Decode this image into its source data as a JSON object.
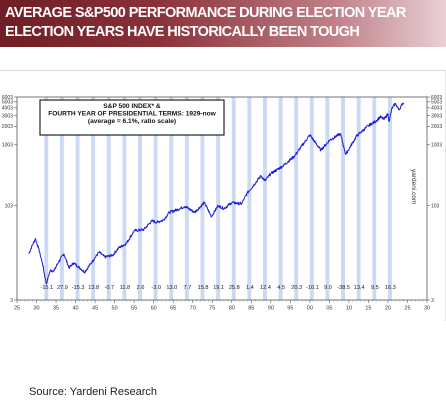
{
  "header": {
    "line1": "AVERAGE S&P500 PERFORMANCE DURING ELECTION YEAR",
    "line2": "ELECTION YEARS HAVE HISTORICALLY BEEN TOUGH"
  },
  "source": "Source: Yardeni Research",
  "chart_data": {
    "type": "line",
    "legend_lines": [
      "S&P 500 INDEX* &",
      "FOURTH YEAR OF PRESIDENTIAL TERMS: 1929-now",
      "(average = 6.1%, ratio scale)"
    ],
    "watermark": "yardeni.com",
    "y_scale": "log",
    "ylim": [
      3,
      6003
    ],
    "y_ticks": [
      3,
      103,
      1003,
      2003,
      3003,
      4003,
      5003,
      6003
    ],
    "xlim": [
      1925,
      2030
    ],
    "x_tick_labels": [
      "25",
      "30",
      "35",
      "40",
      "45",
      "50",
      "55",
      "60",
      "65",
      "70",
      "75",
      "80",
      "85",
      "90",
      "95",
      "00",
      "05",
      "10",
      "15",
      "20",
      "25",
      "30"
    ],
    "election_years": [
      {
        "year": 1932,
        "label": "-15.1"
      },
      {
        "year": 1936,
        "label": "27.9"
      },
      {
        "year": 1940,
        "label": "-15.3"
      },
      {
        "year": 1944,
        "label": "13.8"
      },
      {
        "year": 1948,
        "label": "-0.7"
      },
      {
        "year": 1952,
        "label": "11.8"
      },
      {
        "year": 1956,
        "label": "2.6"
      },
      {
        "year": 1960,
        "label": "-3.0"
      },
      {
        "year": 1964,
        "label": "13.0"
      },
      {
        "year": 1968,
        "label": "7.7"
      },
      {
        "year": 1972,
        "label": "15.8"
      },
      {
        "year": 1976,
        "label": "19.1"
      },
      {
        "year": 1980,
        "label": "25.8"
      },
      {
        "year": 1984,
        "label": "1.4"
      },
      {
        "year": 1988,
        "label": "12.4"
      },
      {
        "year": 1992,
        "label": "4.5"
      },
      {
        "year": 1996,
        "label": "20.3"
      },
      {
        "year": 2000,
        "label": "-10.1"
      },
      {
        "year": 2004,
        "label": "9.0"
      },
      {
        "year": 2008,
        "label": "-38.5"
      },
      {
        "year": 2012,
        "label": "13.4"
      },
      {
        "year": 2016,
        "label": "9.5"
      },
      {
        "year": 2020,
        "label": "16.3"
      }
    ],
    "series": [
      {
        "values": [
          [
            1928.0,
            17
          ],
          [
            1929.7,
            30
          ],
          [
            1930.5,
            21
          ],
          [
            1931.5,
            12
          ],
          [
            1932.5,
            5.5
          ],
          [
            1933.5,
            9
          ],
          [
            1934.5,
            9
          ],
          [
            1935.5,
            12
          ],
          [
            1937.0,
            17
          ],
          [
            1938.3,
            10
          ],
          [
            1939.5,
            12
          ],
          [
            1941.5,
            9.5
          ],
          [
            1942.3,
            8.5
          ],
          [
            1944.0,
            12
          ],
          [
            1946.0,
            18
          ],
          [
            1947.5,
            15
          ],
          [
            1949.5,
            16
          ],
          [
            1951.0,
            21
          ],
          [
            1953.0,
            25
          ],
          [
            1955.0,
            40
          ],
          [
            1957.5,
            42
          ],
          [
            1959.5,
            58
          ],
          [
            1960.8,
            55
          ],
          [
            1962.5,
            60
          ],
          [
            1964.0,
            80
          ],
          [
            1966.0,
            88
          ],
          [
            1968.0,
            100
          ],
          [
            1970.5,
            80
          ],
          [
            1973.0,
            115
          ],
          [
            1974.8,
            68
          ],
          [
            1976.5,
            103
          ],
          [
            1978.0,
            92
          ],
          [
            1980.0,
            115
          ],
          [
            1982.5,
            110
          ],
          [
            1984.0,
            165
          ],
          [
            1987.5,
            315
          ],
          [
            1988.5,
            260
          ],
          [
            1990.0,
            340
          ],
          [
            1993.0,
            450
          ],
          [
            1996.0,
            650
          ],
          [
            2000.0,
            1450
          ],
          [
            2002.8,
            820
          ],
          [
            2005.0,
            1180
          ],
          [
            2007.8,
            1520
          ],
          [
            2009.2,
            700
          ],
          [
            2012.0,
            1400
          ],
          [
            2015.0,
            2050
          ],
          [
            2017.0,
            2450
          ],
          [
            2018.0,
            2850
          ],
          [
            2019.0,
            2600
          ],
          [
            2020.0,
            3200
          ],
          [
            2020.3,
            2400
          ],
          [
            2021.0,
            3900
          ],
          [
            2021.9,
            4700
          ],
          [
            2022.8,
            3700
          ],
          [
            2023.5,
            4400
          ],
          [
            2024.0,
            4850
          ]
        ]
      }
    ]
  }
}
